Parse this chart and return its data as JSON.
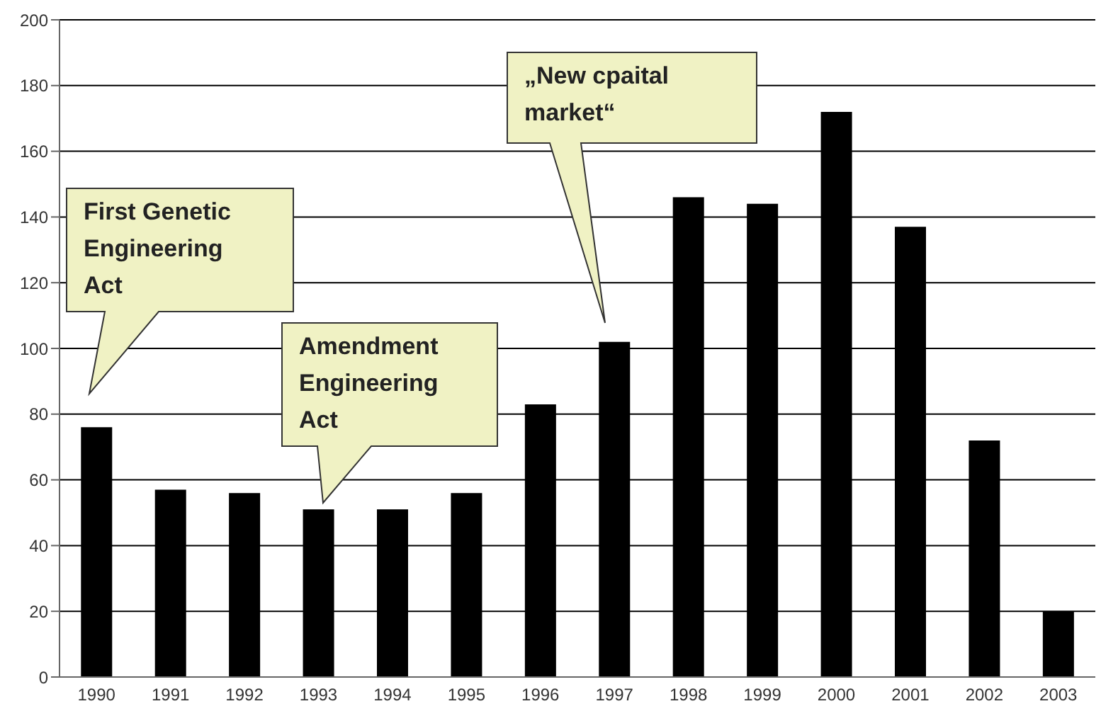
{
  "chart_data": {
    "type": "bar",
    "categories": [
      "1990",
      "1991",
      "1992",
      "1993",
      "1994",
      "1995",
      "1996",
      "1997",
      "1998",
      "1999",
      "2000",
      "2001",
      "2002",
      "2003"
    ],
    "values": [
      76,
      57,
      56,
      51,
      51,
      56,
      83,
      102,
      146,
      144,
      172,
      137,
      72,
      20
    ],
    "color": "#000000",
    "ylim": [
      0,
      200
    ],
    "yticks": [
      0,
      20,
      40,
      60,
      80,
      100,
      120,
      140,
      160,
      180,
      200
    ],
    "grid": "y",
    "annotations": [
      "First Genetic Engineering Act",
      "Amendment Engineering Act",
      "„New cpaital market“"
    ]
  }
}
